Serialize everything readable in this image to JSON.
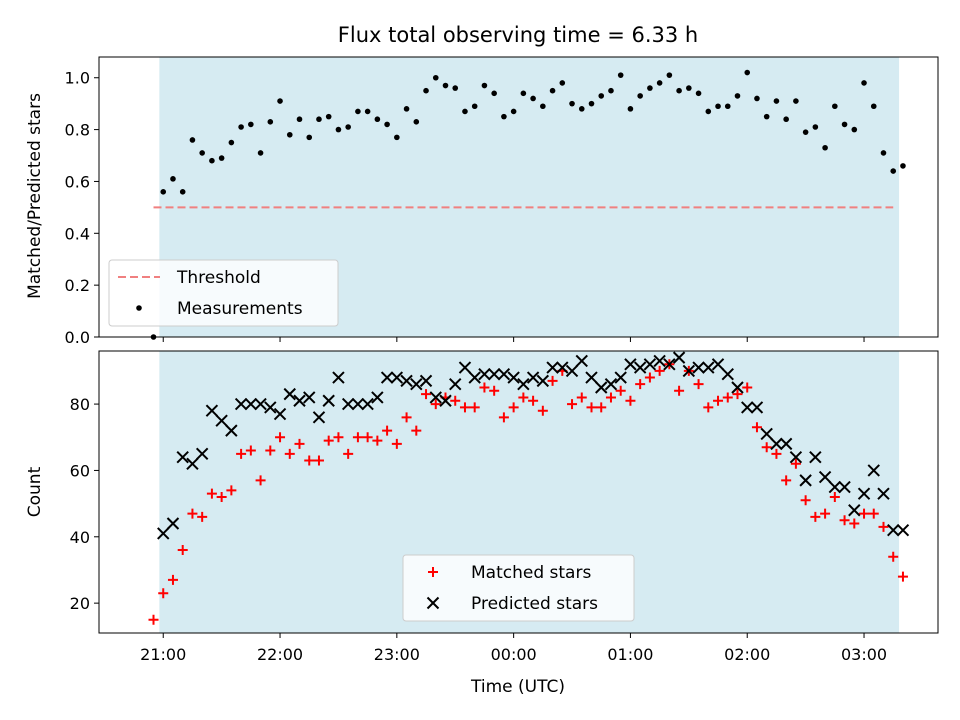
{
  "chart_data": [
    {
      "type": "scatter",
      "title": "Flux total observing time = 6.33 h",
      "ylabel": "Matched/Predicted stars",
      "xlabel": "",
      "ylim": [
        0.0,
        1.08
      ],
      "yticks": [
        "0.0",
        "0.2",
        "0.4",
        "0.6",
        "0.8",
        "1.0"
      ],
      "observing_window": [
        "20:58",
        "03:18"
      ],
      "colors": {
        "shade": "#add8e6",
        "threshold": "#f08080",
        "measurements": "#000000"
      },
      "threshold": {
        "name": "Threshold",
        "y": 0.5,
        "x_range": [
          "20:55",
          "03:15"
        ]
      },
      "series": [
        {
          "name": "Measurements",
          "x": [
            "20:55",
            "21:00",
            "21:05",
            "21:10",
            "21:15",
            "21:20",
            "21:25",
            "21:30",
            "21:35",
            "21:40",
            "21:45",
            "21:50",
            "21:55",
            "22:00",
            "22:05",
            "22:10",
            "22:15",
            "22:20",
            "22:25",
            "22:30",
            "22:35",
            "22:40",
            "22:45",
            "22:50",
            "22:55",
            "23:00",
            "23:05",
            "23:10",
            "23:15",
            "23:20",
            "23:25",
            "23:30",
            "23:35",
            "23:40",
            "23:45",
            "23:50",
            "23:55",
            "00:00",
            "00:05",
            "00:10",
            "00:15",
            "00:20",
            "00:25",
            "00:30",
            "00:35",
            "00:40",
            "00:45",
            "00:50",
            "00:55",
            "01:00",
            "01:05",
            "01:10",
            "01:15",
            "01:20",
            "01:25",
            "01:30",
            "01:35",
            "01:40",
            "01:45",
            "01:50",
            "01:55",
            "02:00",
            "02:05",
            "02:10",
            "02:15",
            "02:20",
            "02:25",
            "02:30",
            "02:35",
            "02:40",
            "02:45",
            "02:50",
            "02:55",
            "03:00",
            "03:05",
            "03:10",
            "03:15",
            "03:20"
          ],
          "y": [
            0.0,
            0.56,
            0.61,
            0.56,
            0.76,
            0.71,
            0.68,
            0.69,
            0.75,
            0.81,
            0.82,
            0.71,
            0.83,
            0.91,
            0.78,
            0.84,
            0.77,
            0.84,
            0.85,
            0.8,
            0.81,
            0.87,
            0.87,
            0.84,
            0.82,
            0.77,
            0.88,
            0.83,
            0.95,
            1.0,
            0.97,
            0.96,
            0.87,
            0.89,
            0.97,
            0.94,
            0.85,
            0.87,
            0.94,
            0.92,
            0.89,
            0.95,
            0.98,
            0.9,
            0.88,
            0.9,
            0.93,
            0.95,
            1.01,
            0.88,
            0.93,
            0.96,
            0.98,
            1.01,
            0.95,
            0.96,
            0.94,
            0.87,
            0.89,
            0.89,
            0.93,
            1.02,
            0.92,
            0.85,
            0.91,
            0.84,
            0.91,
            0.79,
            0.81,
            0.73,
            0.89,
            0.82,
            0.8,
            0.98,
            0.89,
            0.71,
            0.64,
            0.66
          ]
        }
      ],
      "legend": "lower-left"
    },
    {
      "type": "scatter",
      "title": "",
      "xlabel": "Time (UTC)",
      "ylabel": "Count",
      "ylim": [
        11,
        96
      ],
      "yticks": [
        "20",
        "40",
        "60",
        "80"
      ],
      "xticks": [
        "21:00",
        "22:00",
        "23:00",
        "00:00",
        "01:00",
        "02:00",
        "03:00"
      ],
      "observing_window": [
        "20:58",
        "03:18"
      ],
      "colors": {
        "shade": "#add8e6",
        "matched": "#ff0000",
        "predicted": "#000000"
      },
      "series": [
        {
          "name": "Matched stars",
          "marker": "plus",
          "x": [
            "20:55",
            "21:00",
            "21:05",
            "21:10",
            "21:15",
            "21:20",
            "21:25",
            "21:30",
            "21:35",
            "21:40",
            "21:45",
            "21:50",
            "21:55",
            "22:00",
            "22:05",
            "22:10",
            "22:15",
            "22:20",
            "22:25",
            "22:30",
            "22:35",
            "22:40",
            "22:45",
            "22:50",
            "22:55",
            "23:00",
            "23:05",
            "23:10",
            "23:15",
            "23:20",
            "23:25",
            "23:30",
            "23:35",
            "23:40",
            "23:45",
            "23:50",
            "23:55",
            "00:00",
            "00:05",
            "00:10",
            "00:15",
            "00:20",
            "00:25",
            "00:30",
            "00:35",
            "00:40",
            "00:45",
            "00:50",
            "00:55",
            "01:00",
            "01:05",
            "01:10",
            "01:15",
            "01:20",
            "01:25",
            "01:30",
            "01:35",
            "01:40",
            "01:45",
            "01:50",
            "01:55",
            "02:00",
            "02:05",
            "02:10",
            "02:15",
            "02:20",
            "02:25",
            "02:30",
            "02:35",
            "02:40",
            "02:45",
            "02:50",
            "02:55",
            "03:00",
            "03:05",
            "03:10",
            "03:15",
            "03:20"
          ],
          "y": [
            15,
            23,
            27,
            36,
            47,
            46,
            53,
            52,
            54,
            65,
            66,
            57,
            66,
            70,
            65,
            68,
            63,
            63,
            69,
            70,
            65,
            70,
            70,
            69,
            72,
            68,
            76,
            72,
            83,
            80,
            82,
            81,
            79,
            79,
            85,
            84,
            76,
            79,
            82,
            81,
            78,
            87,
            90,
            80,
            82,
            79,
            79,
            82,
            84,
            81,
            86,
            88,
            90,
            92,
            84,
            90,
            86,
            79,
            81,
            82,
            83,
            85,
            73,
            67,
            65,
            57,
            62,
            51,
            46,
            47,
            52,
            45,
            44,
            47,
            47,
            43,
            34,
            28
          ]
        },
        {
          "name": "Predicted stars",
          "marker": "x",
          "x": [
            "21:00",
            "21:05",
            "21:10",
            "21:15",
            "21:20",
            "21:25",
            "21:30",
            "21:35",
            "21:40",
            "21:45",
            "21:50",
            "21:55",
            "22:00",
            "22:05",
            "22:10",
            "22:15",
            "22:20",
            "22:25",
            "22:30",
            "22:35",
            "22:40",
            "22:45",
            "22:50",
            "22:55",
            "23:00",
            "23:05",
            "23:10",
            "23:15",
            "23:20",
            "23:25",
            "23:30",
            "23:35",
            "23:40",
            "23:45",
            "23:50",
            "23:55",
            "00:00",
            "00:05",
            "00:10",
            "00:15",
            "00:20",
            "00:25",
            "00:30",
            "00:35",
            "00:40",
            "00:45",
            "00:50",
            "00:55",
            "01:00",
            "01:05",
            "01:10",
            "01:15",
            "01:20",
            "01:25",
            "01:30",
            "01:35",
            "01:40",
            "01:45",
            "01:50",
            "01:55",
            "02:00",
            "02:05",
            "02:10",
            "02:15",
            "02:20",
            "02:25",
            "02:30",
            "02:35",
            "02:40",
            "02:45",
            "02:50",
            "02:55",
            "03:00",
            "03:05",
            "03:10",
            "03:15",
            "03:20"
          ],
          "y": [
            41,
            44,
            64,
            62,
            65,
            78,
            75,
            72,
            80,
            80,
            80,
            79,
            77,
            83,
            81,
            82,
            76,
            81,
            88,
            80,
            80,
            80,
            82,
            88,
            88,
            87,
            86,
            87,
            82,
            81,
            86,
            91,
            88,
            89,
            89,
            89,
            88,
            86,
            88,
            87,
            91,
            91,
            90,
            93,
            88,
            85,
            86,
            88,
            92,
            91,
            92,
            93,
            92,
            94,
            90,
            91,
            91,
            92,
            89,
            85,
            79,
            79,
            71,
            68,
            68,
            64,
            57,
            64,
            58,
            55,
            55,
            48,
            53,
            60,
            53,
            42,
            42
          ]
        }
      ],
      "legend": "lower-center"
    }
  ]
}
